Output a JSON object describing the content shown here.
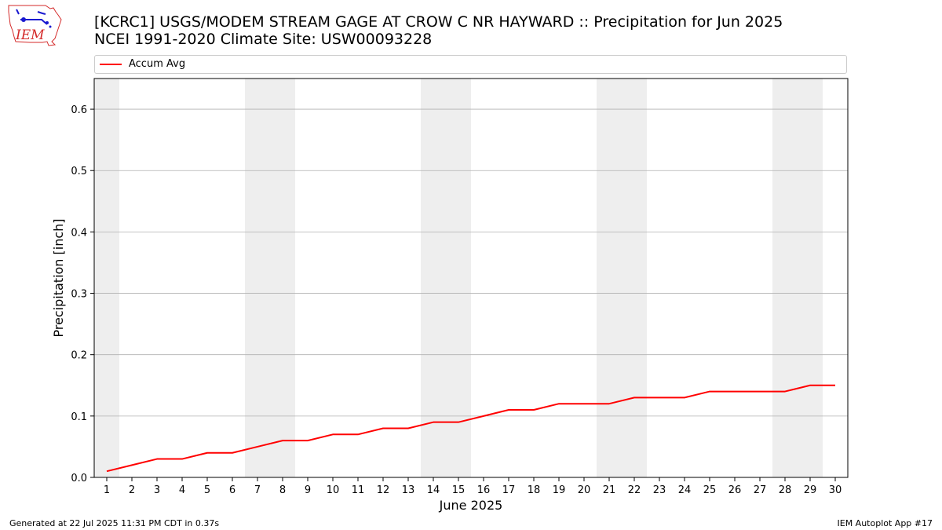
{
  "title_line1": "[KCRC1] USGS/MODEM STREAM GAGE  AT CROW C NR HAYWARD :: Precipitation for Jun 2025",
  "title_line2": "NCEI 1991-2020 Climate Site: USW00093228",
  "logo_text": "IEM",
  "footer_left": "Generated at 22 Jul 2025 11:31 PM CDT in 0.37s",
  "footer_right": "IEM Autoplot App #17",
  "colors": {
    "series": "#ff0000",
    "weekend_shade": "#eeeeee",
    "grid": "#b0b0b0",
    "logo_red": "#d42a2a",
    "logo_blue": "#1a1ad0"
  },
  "chart_data": {
    "type": "line",
    "xlabel": "June 2025",
    "ylabel": "Precipitation [inch]",
    "x": [
      1,
      2,
      3,
      4,
      5,
      6,
      7,
      8,
      9,
      10,
      11,
      12,
      13,
      14,
      15,
      16,
      17,
      18,
      19,
      20,
      21,
      22,
      23,
      24,
      25,
      26,
      27,
      28,
      29,
      30
    ],
    "xlim": [
      0.5,
      30.5
    ],
    "ylim": [
      0,
      0.65
    ],
    "yticks": [
      0.0,
      0.1,
      0.2,
      0.3,
      0.4,
      0.5,
      0.6
    ],
    "ytick_labels": [
      "0.0",
      "0.1",
      "0.2",
      "0.3",
      "0.4",
      "0.5",
      "0.6"
    ],
    "grid": "horizontal",
    "legend_position": "top",
    "weekend_days": [
      1,
      7,
      8,
      14,
      15,
      21,
      22,
      28,
      29
    ],
    "series": [
      {
        "name": "Accum Avg",
        "values": [
          0.01,
          0.02,
          0.03,
          0.03,
          0.04,
          0.04,
          0.05,
          0.06,
          0.06,
          0.07,
          0.07,
          0.08,
          0.08,
          0.09,
          0.09,
          0.1,
          0.11,
          0.11,
          0.12,
          0.12,
          0.12,
          0.13,
          0.13,
          0.13,
          0.14,
          0.14,
          0.14,
          0.14,
          0.15,
          0.15
        ]
      }
    ]
  }
}
